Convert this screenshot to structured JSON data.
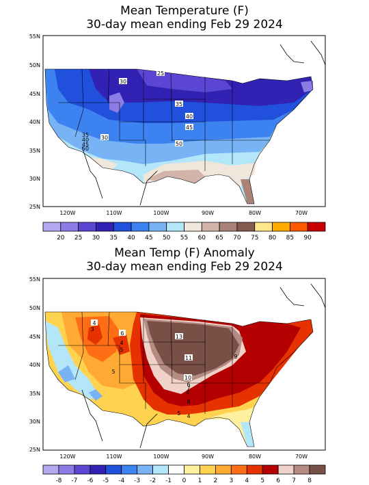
{
  "panels": [
    {
      "title_line1": "Mean Temperature (F)",
      "title_line2": "30-day mean ending Feb 29 2024",
      "lat_labels": [
        "55N",
        "50N",
        "45N",
        "40N",
        "35N",
        "30N",
        "25N"
      ],
      "lon_labels": [
        "120W",
        "110W",
        "100W",
        "90W",
        "80W",
        "70W"
      ],
      "legend_labels": [
        "20",
        "25",
        "30",
        "35",
        "40",
        "45",
        "50",
        "55",
        "60",
        "65",
        "70",
        "75",
        "80",
        "85",
        "90"
      ],
      "legend_colors": [
        "#b4a8f0",
        "#8c7ce6",
        "#5a46d2",
        "#3222b4",
        "#2050dc",
        "#3c82f0",
        "#78b4f5",
        "#b4e6fa",
        "#f0e6dc",
        "#d2b4aa",
        "#aa8278",
        "#825a50",
        "#ffe68c",
        "#ffaa00",
        "#ff5a00",
        "#c80000"
      ],
      "contour_labels": [
        "25",
        "30",
        "35",
        "40",
        "45",
        "50",
        "30",
        "35",
        "40",
        "45",
        "50"
      ]
    },
    {
      "title_line1": "Mean Temp (F) Anomaly",
      "title_line2": "30-day mean ending Feb 29 2024",
      "lat_labels": [
        "55N",
        "50N",
        "45N",
        "40N",
        "35N",
        "30N",
        "25N"
      ],
      "lon_labels": [
        "120W",
        "110W",
        "100W",
        "90W",
        "80W",
        "70W"
      ],
      "legend_labels": [
        "-8",
        "-7",
        "-6",
        "-5",
        "-4",
        "-3",
        "-2",
        "-1",
        "0",
        "1",
        "2",
        "3",
        "4",
        "5",
        "6",
        "7",
        "8"
      ],
      "legend_colors": [
        "#b4a8f0",
        "#8c7ce6",
        "#5a46d2",
        "#3222b4",
        "#2050dc",
        "#3c82f0",
        "#78b4f5",
        "#b4e6fa",
        "#ffffff",
        "#fff0a0",
        "#ffd250",
        "#ffaa32",
        "#ff6e14",
        "#e63200",
        "#b40000",
        "#f0d2c8",
        "#b48c82",
        "#785046"
      ],
      "contour_labels": [
        "4",
        "6",
        "13",
        "11",
        "10",
        "6",
        "8",
        "9",
        "5",
        "4",
        "4",
        "5",
        "8",
        "7",
        "5",
        "3"
      ]
    }
  ]
}
